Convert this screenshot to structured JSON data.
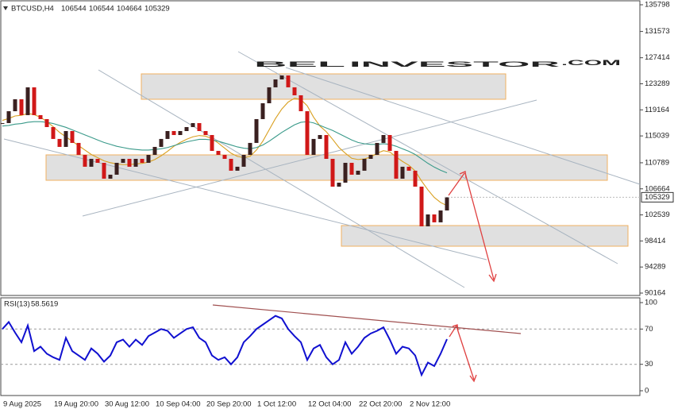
{
  "watermark": [
    "BEL",
    "INVESTOR",
    ".COM"
  ],
  "chart_data": [
    {
      "type": "candlestick",
      "title": "BTCUSD,H4",
      "header_ohlc": [
        106544,
        106544,
        104664,
        105329
      ],
      "categories": [
        "9 Aug 2025",
        null,
        null,
        null,
        null,
        null,
        null,
        null,
        "19 Aug 20:00",
        null,
        null,
        null,
        null,
        null,
        null,
        null,
        "30 Aug 12:00",
        null,
        null,
        null,
        null,
        null,
        null,
        null,
        "10 Sep 04:00",
        null,
        null,
        null,
        null,
        null,
        null,
        null,
        "20 Sep 20:00",
        null,
        null,
        null,
        null,
        null,
        null,
        null,
        "1 Oct 12:00",
        null,
        null,
        null,
        null,
        null,
        null,
        null,
        "12 Oct 04:00",
        null,
        null,
        null,
        null,
        null,
        null,
        null,
        "22 Oct 20:00",
        null,
        null,
        null,
        null,
        null,
        null,
        null,
        "2 Nov 12:00",
        null,
        null,
        null,
        null,
        null,
        null
      ],
      "series": [
        {
          "type": "candlestick",
          "up_color": "#3a2020",
          "down_color": "#d01818",
          "values": [
            117070,
            118950,
            120840,
            118330,
            122730,
            118330,
            117700,
            116440,
            114560,
            113300,
            115810,
            113930,
            112040,
            110160,
            111410,
            110780,
            108270,
            108900,
            110780,
            111410,
            110160,
            111410,
            110780,
            112040,
            113300,
            114560,
            115810,
            115180,
            115810,
            116440,
            117070,
            115810,
            115180,
            112670,
            112040,
            111410,
            109530,
            110160,
            112040,
            113930,
            117700,
            120210,
            122730,
            123980,
            124610,
            122730,
            121470,
            118950,
            112040,
            114560,
            115180,
            111410,
            107010,
            107640,
            110780,
            108900,
            109530,
            111410,
            112040,
            113930,
            115180,
            112670,
            108270,
            110160,
            109530,
            107010,
            100730,
            102610,
            101360,
            103240,
            105329
          ]
        },
        {
          "type": "line",
          "color": "#d9a020",
          "values": [
            117500,
            117800,
            118200,
            118300,
            118600,
            118400,
            118000,
            117300,
            116500,
            115600,
            114900,
            114200,
            113500,
            112800,
            112100,
            111600,
            111100,
            110800,
            110600,
            110500,
            110500,
            110600,
            110700,
            110900,
            111300,
            111900,
            112600,
            113400,
            114000,
            114500,
            114900,
            115100,
            115000,
            114600,
            113900,
            113100,
            112300,
            111800,
            111600,
            111800,
            112800,
            114200,
            116000,
            117800,
            119300,
            120400,
            121000,
            120800,
            119800,
            118000,
            116600,
            115700,
            114500,
            113200,
            112300,
            111500,
            111300,
            111400,
            111700,
            112300,
            112700,
            112500,
            111700,
            111000,
            110400,
            109500,
            107900,
            106500,
            105300,
            104500,
            104000
          ]
        },
        {
          "type": "line",
          "color": "#3a9a8a",
          "values": [
            116600,
            116700,
            116900,
            117000,
            117200,
            117300,
            117300,
            117200,
            117000,
            116700,
            116400,
            116000,
            115600,
            115200,
            114800,
            114400,
            114000,
            113700,
            113400,
            113200,
            113000,
            112900,
            112800,
            112800,
            112900,
            113000,
            113200,
            113500,
            113800,
            114100,
            114300,
            114500,
            114500,
            114400,
            114200,
            113900,
            113600,
            113300,
            113100,
            113000,
            113200,
            113600,
            114200,
            114900,
            115600,
            116200,
            116800,
            117200,
            117300,
            117100,
            116700,
            116300,
            115900,
            115400,
            114900,
            114400,
            114000,
            113800,
            113700,
            113700,
            113800,
            113700,
            113400,
            113000,
            112600,
            112100,
            111400,
            110700,
            110100,
            109600,
            109200
          ]
        }
      ],
      "ylim": [
        89787,
        136427
      ],
      "yticks": [
        90164,
        94289,
        98414,
        102539,
        106664,
        110789,
        115039,
        119164,
        123289,
        127414,
        131573,
        135798
      ]
    },
    {
      "type": "line",
      "title": "RSI(13)",
      "series": [
        {
          "color": "#1010d0",
          "values": [
            70,
            78,
            66,
            55,
            74,
            45,
            50,
            42,
            38,
            35,
            60,
            45,
            40,
            35,
            48,
            42,
            33,
            40,
            55,
            58,
            50,
            58,
            52,
            62,
            66,
            70,
            68,
            60,
            65,
            70,
            72,
            60,
            55,
            40,
            35,
            38,
            30,
            38,
            55,
            62,
            70,
            75,
            80,
            85,
            82,
            70,
            62,
            55,
            35,
            48,
            52,
            38,
            30,
            35,
            55,
            42,
            50,
            60,
            65,
            68,
            72,
            58,
            42,
            50,
            48,
            40,
            18,
            32,
            28,
            42,
            58.5619
          ]
        }
      ],
      "ylim": [
        -5.4,
        105.4
      ],
      "yticks": [
        0,
        30,
        70,
        100
      ],
      "levels": [
        30,
        70
      ]
    }
  ]
}
